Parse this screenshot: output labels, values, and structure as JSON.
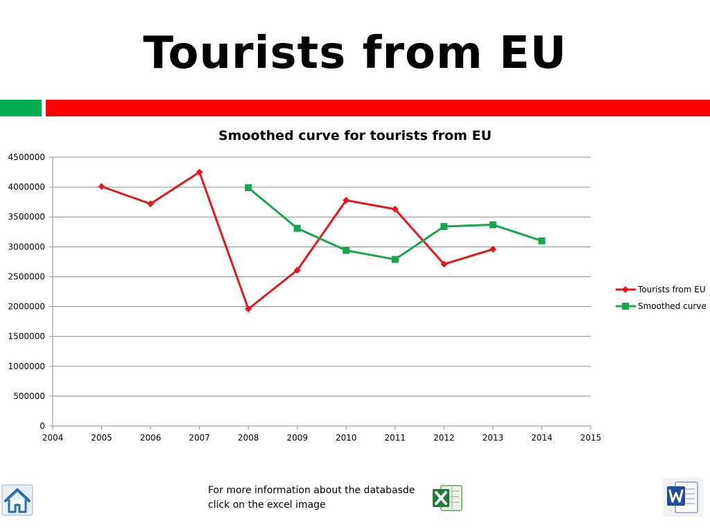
{
  "slide": {
    "title": "Tourists from EU",
    "info_text": "For more information about the databasde click on the excel image"
  },
  "colors": {
    "accent_green": "#00B050",
    "accent_red": "#FF0000",
    "series_red": "#E8161B",
    "series_green": "#16A64B",
    "grid": "#8C8C8C"
  },
  "icons": {
    "home": "home-icon",
    "excel": "excel-icon",
    "word": "word-icon"
  },
  "chart_data": {
    "type": "scatter",
    "title": "Smoothed curve for tourists from EU",
    "xlabel": "",
    "ylabel": "",
    "xlim": [
      2004,
      2015
    ],
    "ylim": [
      0,
      4500000
    ],
    "x_ticks": [
      2004,
      2005,
      2006,
      2007,
      2008,
      2009,
      2010,
      2011,
      2012,
      2013,
      2014,
      2015
    ],
    "y_ticks": [
      0,
      500000,
      1000000,
      1500000,
      2000000,
      2500000,
      3000000,
      3500000,
      4000000,
      4500000
    ],
    "grid": "horizontal",
    "legend_position": "right",
    "series": [
      {
        "name": "Tourists from EU",
        "marker": "diamond",
        "color": "#E8161B",
        "x": [
          2005,
          2006,
          2007,
          2008,
          2009,
          2010,
          2011,
          2012,
          2013
        ],
        "y": [
          4010000,
          3720000,
          4250000,
          1960000,
          2610000,
          3780000,
          3630000,
          2710000,
          2960000
        ]
      },
      {
        "name": "Smoothed curve",
        "marker": "square",
        "color": "#16A64B",
        "x": [
          2008,
          2009,
          2010,
          2011,
          2012,
          2013,
          2014
        ],
        "y": [
          3990000,
          3310000,
          2940000,
          2790000,
          3340000,
          3370000,
          3100000
        ]
      }
    ]
  }
}
